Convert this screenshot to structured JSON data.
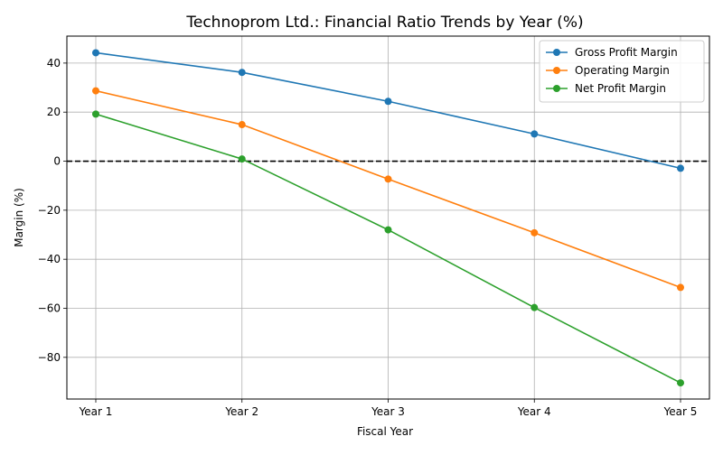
{
  "chart_data": {
    "type": "line",
    "title": "Technoprom Ltd.: Financial Ratio Trends by Year (%)",
    "xlabel": "Fiscal Year",
    "ylabel": "Margin (%)",
    "categories": [
      "Year 1",
      "Year 2",
      "Year 3",
      "Year 4",
      "Year 5"
    ],
    "ylim": [
      -97,
      51
    ],
    "yticks": [
      40,
      20,
      0,
      -20,
      -40,
      -60,
      -80
    ],
    "ytick_labels": [
      "40",
      "20",
      "0",
      "−20",
      "−40",
      "−60",
      "−80"
    ],
    "grid": true,
    "legend_position": "top-right",
    "reference_line": {
      "y": 0,
      "style": "dashed",
      "color": "#000000"
    },
    "series": [
      {
        "name": "Gross Profit Margin",
        "color": "#1f77b4",
        "values": [
          44.2,
          36.2,
          24.4,
          11.1,
          -2.9
        ]
      },
      {
        "name": "Operating Margin",
        "color": "#ff7f0e",
        "values": [
          28.7,
          14.9,
          -7.3,
          -29.2,
          -51.5
        ]
      },
      {
        "name": "Net Profit Margin",
        "color": "#2ca02c",
        "values": [
          19.2,
          0.9,
          -28.0,
          -59.7,
          -90.4
        ]
      }
    ]
  }
}
